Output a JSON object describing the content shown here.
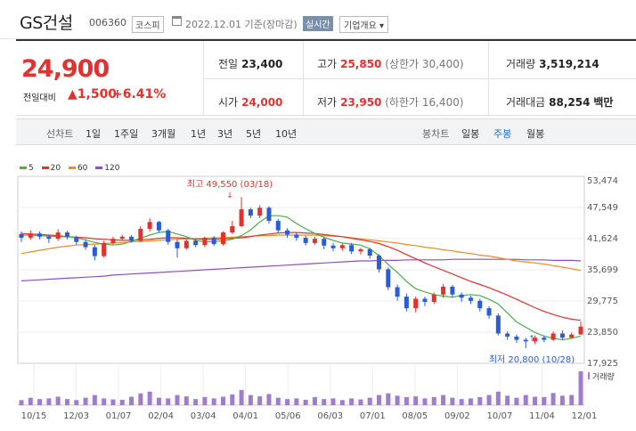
{
  "header": {
    "name": "GS건설",
    "code": "006360",
    "market": "코스피",
    "date": "2022.12.01",
    "basis": "기준(장마감)",
    "realtime": "실시간",
    "company_info": "기업개요 ▾"
  },
  "summary": {
    "price": "24,900",
    "change_label": "전일대비",
    "change": "▲1,500",
    "change_pct": "+6.41%",
    "prev_label": "전일",
    "prev": "23,400",
    "open_label": "시가",
    "open": "24,000",
    "high_label": "고가",
    "high": "25,850",
    "upper_limit": "(상한가 30,400)",
    "low_label": "저가",
    "low": "23,950",
    "lower_limit": "(하한가 16,400)",
    "volume_label": "거래량",
    "volume": "3,519,214",
    "amount_label": "거래대금",
    "amount": "88,254",
    "amount_unit": "백만"
  },
  "toolbar": {
    "line_label": "선차트",
    "periods": [
      "1일",
      "1주일",
      "3개월",
      "1년",
      "3년",
      "5년",
      "10년"
    ],
    "candle_label": "봉차트",
    "candle_periods": [
      "일봉",
      "주봉",
      "월봉"
    ],
    "selected_candle": "주봉"
  },
  "colors": {
    "up": "#e4312f",
    "down": "#2a5cd8",
    "ma5": "#4aae4a",
    "ma20": "#e4312f",
    "ma60": "#f08a24",
    "ma120": "#8e4fbf",
    "volume": "#a07bd0"
  },
  "chart_data": {
    "type": "candlestick",
    "legend": [
      "5",
      "20",
      "60",
      "120"
    ],
    "y_ticks": [
      "53,474",
      "47,549",
      "41,624",
      "35,699",
      "29,775",
      "23,850",
      "17,925"
    ],
    "ylim": [
      17925,
      53474
    ],
    "x_ticks": [
      "10/15",
      "12/03",
      "01/07",
      "02/04",
      "03/04",
      "04/01",
      "05/06",
      "06/03",
      "07/01",
      "08/05",
      "09/02",
      "10/07",
      "11/04",
      "12/01"
    ],
    "high_note": "최고 49,550 (03/18)",
    "low_note": "최저 20,800 (10/28)",
    "volume_label": "거래량",
    "candles": [
      [
        42500,
        41800,
        43000,
        41000
      ],
      [
        41800,
        42600,
        43200,
        41400
      ],
      [
        42600,
        42000,
        43000,
        41500
      ],
      [
        42000,
        41600,
        42400,
        40800
      ],
      [
        41600,
        42800,
        43400,
        41200
      ],
      [
        42800,
        41900,
        43100,
        41500
      ],
      [
        41900,
        41000,
        42200,
        40500
      ],
      [
        41000,
        40000,
        41400,
        39500
      ],
      [
        40000,
        38300,
        40400,
        37500
      ],
      [
        38300,
        40800,
        41200,
        38000
      ],
      [
        40800,
        41600,
        42000,
        40500
      ],
      [
        41600,
        42000,
        42400,
        41200
      ],
      [
        42000,
        41200,
        42300,
        40900
      ],
      [
        41200,
        43500,
        44000,
        41000
      ],
      [
        43500,
        44800,
        45500,
        43000
      ],
      [
        44800,
        43200,
        45000,
        42800
      ],
      [
        43200,
        41000,
        43500,
        40500
      ],
      [
        41000,
        39800,
        41500,
        38000
      ],
      [
        39800,
        41200,
        41500,
        39500
      ],
      [
        41200,
        40400,
        41600,
        40000
      ],
      [
        40400,
        41800,
        42000,
        40000
      ],
      [
        41800,
        40600,
        42100,
        40200
      ],
      [
        40600,
        42800,
        43000,
        40300
      ],
      [
        42800,
        44000,
        45000,
        42500
      ],
      [
        44000,
        47200,
        49550,
        43800
      ],
      [
        47200,
        46000,
        47500,
        45500
      ],
      [
        46000,
        47500,
        48000,
        45500
      ],
      [
        47500,
        45000,
        47800,
        44500
      ],
      [
        45000,
        43200,
        45400,
        42800
      ],
      [
        43200,
        42400,
        43600,
        41800
      ],
      [
        42400,
        41800,
        42800,
        41200
      ],
      [
        41800,
        40800,
        42200,
        40300
      ],
      [
        40800,
        41600,
        42000,
        40400
      ],
      [
        41600,
        40300,
        41900,
        39600
      ],
      [
        40300,
        39800,
        40800,
        39200
      ],
      [
        39800,
        40400,
        40700,
        39300
      ],
      [
        40400,
        39200,
        40800,
        38700
      ],
      [
        39200,
        39600,
        39900,
        38600
      ],
      [
        39600,
        38400,
        39900,
        37800
      ],
      [
        38400,
        35800,
        38700,
        35200
      ],
      [
        35800,
        32400,
        36200,
        31800
      ],
      [
        32400,
        30600,
        32900,
        29800
      ],
      [
        30600,
        28400,
        31200,
        27800
      ],
      [
        28400,
        30200,
        30600,
        27600
      ],
      [
        30200,
        29600,
        30600,
        28800
      ],
      [
        29600,
        31000,
        31400,
        29200
      ],
      [
        31000,
        32500,
        33000,
        30400
      ],
      [
        32500,
        31000,
        32800,
        30400
      ],
      [
        31000,
        30400,
        31400,
        29600
      ],
      [
        30400,
        29800,
        30800,
        29200
      ],
      [
        29800,
        28400,
        30200,
        27800
      ],
      [
        28400,
        27000,
        28800,
        26400
      ],
      [
        27000,
        23600,
        27400,
        23200
      ],
      [
        23600,
        23000,
        24000,
        22400
      ],
      [
        23000,
        22400,
        23400,
        21800
      ],
      [
        22400,
        22100,
        22800,
        20800
      ],
      [
        22100,
        22800,
        23200,
        21600
      ],
      [
        22800,
        22400,
        23200,
        21900
      ],
      [
        22400,
        23600,
        24000,
        22200
      ],
      [
        23600,
        22800,
        24200,
        22400
      ],
      [
        22800,
        23400,
        23800,
        22600
      ],
      [
        23400,
        24900,
        25850,
        23950
      ]
    ],
    "ma5": [
      42300,
      42300,
      42200,
      42100,
      42000,
      42000,
      41800,
      41400,
      40900,
      40600,
      40400,
      40600,
      41100,
      41700,
      42300,
      42800,
      43000,
      42500,
      42000,
      41300,
      41000,
      41100,
      41200,
      41500,
      42200,
      43300,
      44800,
      46000,
      46000,
      45700,
      44500,
      43500,
      42600,
      41900,
      41300,
      40800,
      40600,
      40400,
      39700,
      38400,
      36700,
      35200,
      33500,
      32100,
      31500,
      31000,
      30700,
      30500,
      30800,
      31000,
      30800,
      30100,
      29200,
      27500,
      25800,
      24800,
      23800,
      23100,
      22700,
      22400,
      22700,
      23100
    ],
    "ma20": [
      42600,
      42500,
      42400,
      42300,
      42200,
      42000,
      41900,
      41800,
      41600,
      41500,
      41400,
      41300,
      41300,
      41400,
      41500,
      41700,
      41800,
      41800,
      41700,
      41600,
      41500,
      41500,
      41600,
      41700,
      41800,
      42000,
      42300,
      42500,
      42700,
      42800,
      42800,
      42700,
      42600,
      42400,
      42200,
      42000,
      41700,
      41400,
      41100,
      40700,
      40100,
      39400,
      38600,
      37800,
      37000,
      36300,
      35600,
      34900,
      34200,
      33500,
      32900,
      32300,
      31600,
      30900,
      30100,
      29300,
      28500,
      27800,
      27200,
      26700,
      26300,
      26100
    ],
    "ma60": [
      38800,
      39100,
      39400,
      39700,
      40000,
      40200,
      40400,
      40500,
      40600,
      40700,
      40800,
      40900,
      41000,
      41100,
      41200,
      41300,
      41400,
      41500,
      41600,
      41600,
      41700,
      41800,
      41800,
      41900,
      42000,
      42100,
      42200,
      42200,
      42300,
      42300,
      42300,
      42300,
      42300,
      42200,
      42100,
      42000,
      41800,
      41600,
      41400,
      41200,
      41000,
      40800,
      40500,
      40300,
      40000,
      39800,
      39500,
      39300,
      39000,
      38800,
      38500,
      38300,
      38000,
      37700,
      37400,
      37200,
      37000,
      36800,
      36500,
      36200,
      35900,
      35600
    ],
    "ma120": [
      33600,
      33700,
      33800,
      33900,
      34000,
      34100,
      34200,
      34300,
      34400,
      34500,
      34700,
      34800,
      34900,
      35000,
      35100,
      35200,
      35300,
      35400,
      35500,
      35600,
      35700,
      35800,
      35900,
      36000,
      36100,
      36200,
      36300,
      36400,
      36500,
      36600,
      36700,
      36800,
      36900,
      37000,
      37100,
      37200,
      37300,
      37400,
      37400,
      37500,
      37500,
      37500,
      37600,
      37600,
      37600,
      37600,
      37600,
      37700,
      37700,
      37700,
      37700,
      37700,
      37700,
      37700,
      37700,
      37600,
      37600,
      37600,
      37500,
      37500,
      37500,
      37400
    ],
    "volume": [
      0.15,
      0.22,
      0.18,
      0.2,
      0.25,
      0.18,
      0.15,
      0.22,
      0.3,
      0.2,
      0.17,
      0.16,
      0.25,
      0.35,
      0.4,
      0.22,
      0.2,
      0.3,
      0.26,
      0.18,
      0.24,
      0.2,
      0.25,
      0.32,
      0.45,
      0.3,
      0.26,
      0.33,
      0.22,
      0.18,
      0.2,
      0.16,
      0.24,
      0.18,
      0.2,
      0.15,
      0.2,
      0.17,
      0.22,
      0.3,
      0.35,
      0.28,
      0.24,
      0.26,
      0.2,
      0.24,
      0.3,
      0.22,
      0.18,
      0.2,
      0.24,
      0.3,
      0.4,
      0.28,
      0.22,
      0.3,
      0.25,
      0.24,
      0.36,
      0.28,
      0.3,
      1.0
    ]
  }
}
